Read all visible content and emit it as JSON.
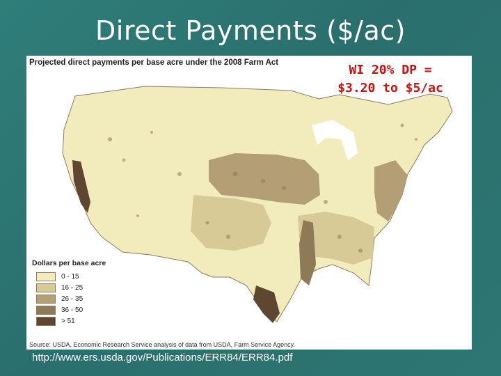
{
  "slide": {
    "title": "Direct Payments ($/ac)",
    "url": "http://www.ers.usda.gov/Publications/ERR84/ERR84.pdf"
  },
  "map": {
    "header": "Projected direct payments per base acre under the 2008 Farm Act",
    "callout_line1": "WI 20% DP =",
    "callout_line2": "$3.20 to $5/ac",
    "source": "Source: USDA, Economic Research Service analysis of data from USDA, Farm Service Agency.",
    "legend": {
      "title": "Dollars per base acre",
      "items": [
        {
          "label": "0 - 15",
          "color": "#f2ecbd"
        },
        {
          "label": "16 - 25",
          "color": "#d8ca96"
        },
        {
          "label": "26 - 35",
          "color": "#b29f75"
        },
        {
          "label": "36 - 50",
          "color": "#8f7a58"
        },
        {
          "label": "> 51",
          "color": "#5e4630"
        }
      ]
    }
  },
  "colors": {
    "background": "#2d7673",
    "callout": "#cc1111"
  }
}
